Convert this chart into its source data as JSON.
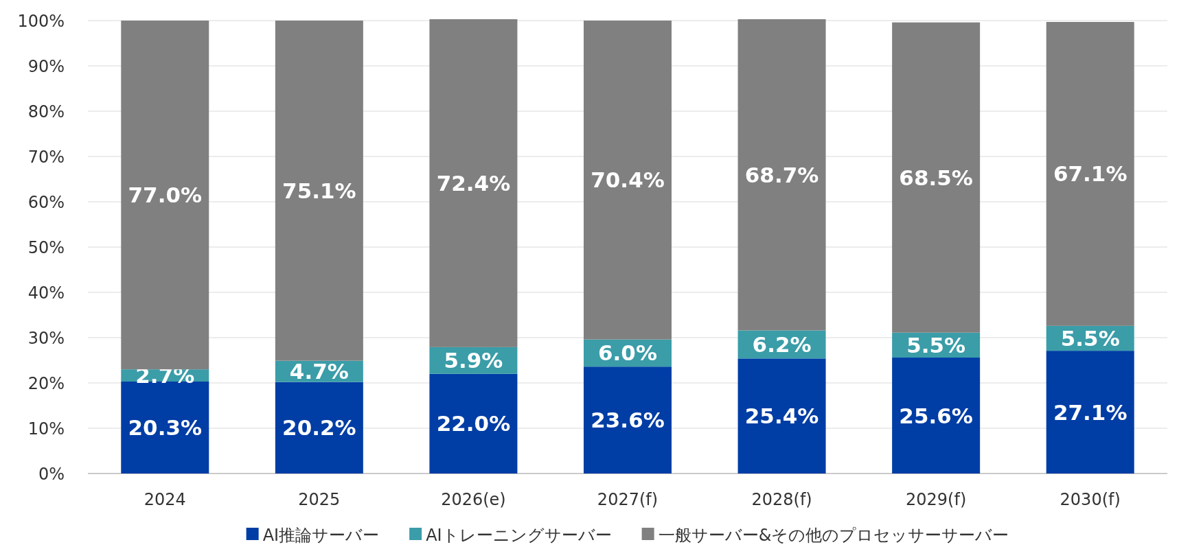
{
  "chart_data": {
    "type": "bar",
    "stacked": true,
    "categories": [
      "2024",
      "2025",
      "2026(e)",
      "2027(f)",
      "2028(f)",
      "2029(f)",
      "2030(f)"
    ],
    "series": [
      {
        "name": "AI推論サーバー",
        "color": "#003da5",
        "values": [
          20.3,
          20.2,
          22.0,
          23.6,
          25.4,
          25.6,
          27.1
        ],
        "value_labels": [
          "20.3%",
          "20.2%",
          "22.0%",
          "23.6%",
          "25.4%",
          "25.6%",
          "27.1%"
        ]
      },
      {
        "name": "AIトレーニングサーバー",
        "color": "#3a9da8",
        "values": [
          2.7,
          4.7,
          5.9,
          6.0,
          6.2,
          5.5,
          5.5
        ],
        "value_labels": [
          "2.7%",
          "4.7%",
          "5.9%",
          "6.0%",
          "6.2%",
          "5.5%",
          "5.5%"
        ]
      },
      {
        "name": "一般サーバー&その他のプロセッサーサーバー",
        "color": "#808080",
        "values": [
          77.0,
          75.1,
          72.4,
          70.4,
          68.7,
          68.5,
          67.1
        ],
        "value_labels": [
          "77.0%",
          "75.1%",
          "72.4%",
          "70.4%",
          "68.7%",
          "68.5%",
          "67.1%"
        ]
      }
    ],
    "ylim": [
      0,
      100
    ],
    "yticks": [
      {
        "value": 0,
        "label": "0%"
      },
      {
        "value": 10,
        "label": "10%"
      },
      {
        "value": 20,
        "label": "20%"
      },
      {
        "value": 30,
        "label": "30%"
      },
      {
        "value": 40,
        "label": "40%"
      },
      {
        "value": 50,
        "label": "50%"
      },
      {
        "value": 60,
        "label": "60%"
      },
      {
        "value": 70,
        "label": "70%"
      },
      {
        "value": 80,
        "label": "80%"
      },
      {
        "value": 90,
        "label": "90%"
      },
      {
        "value": 100,
        "label": "100%"
      }
    ],
    "grid": "y",
    "legend": "bottom"
  }
}
